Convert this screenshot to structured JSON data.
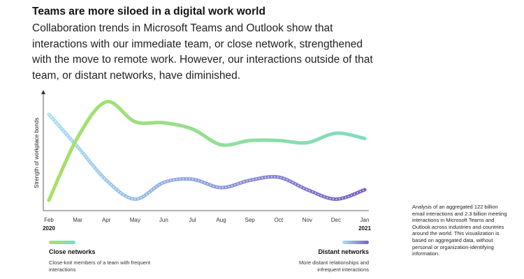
{
  "header": {
    "title": "Teams are more siloed in a digital work world",
    "subtitle": "Collaboration trends in Microsoft Teams and Outlook show that interactions with our immediate team, or close network, strengthened with the move to remote work. However, our interactions outside of that team, or distant networks, have diminished."
  },
  "chart_data": {
    "type": "line",
    "title": "",
    "xlabel": "",
    "ylabel": "Strength of workplace bonds",
    "categories": [
      "Feb",
      "Mar",
      "Apr",
      "May",
      "Jun",
      "Jul",
      "Aug",
      "Sep",
      "Oct",
      "Nov",
      "Dec",
      "Jan"
    ],
    "year_labels": {
      "start": "2020",
      "end": "2021"
    },
    "ylim": [
      0,
      100
    ],
    "grid": false,
    "series": [
      {
        "name": "Close networks",
        "description": "Close-knit members of a team with frequent interactions",
        "color_start": "#a8e063",
        "color_end": "#7fdcc4",
        "style": "solid",
        "values": [
          2,
          62,
          96,
          77,
          76,
          70,
          55,
          59,
          59,
          57,
          66,
          61
        ]
      },
      {
        "name": "Distant networks",
        "description": "More distant relationships and infrequent interactions",
        "color_start": "#a8e0f5",
        "color_end": "#7a5fc4",
        "style": "dotted",
        "values": [
          84,
          53,
          21,
          3,
          19,
          22,
          14,
          21,
          24,
          12,
          3,
          12
        ]
      }
    ]
  },
  "note": "Analysis of an aggregated 122 billion email interactions and 2.3 billion meeting interactions in Microsoft Teams and Outlook across industries and countries around the world. This visualization is based on aggregated data, without personal or organization-identifying information."
}
